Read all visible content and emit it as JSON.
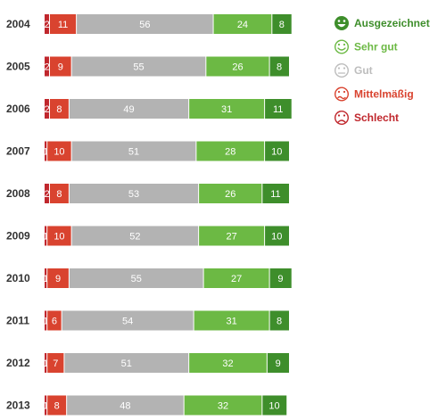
{
  "chart_data": {
    "type": "bar",
    "orientation": "horizontal",
    "stacked": true,
    "categories": [
      "2004",
      "2005",
      "2006",
      "2007",
      "2008",
      "2009",
      "2010",
      "2011",
      "2012",
      "2013"
    ],
    "series": [
      {
        "name": "Schlecht",
        "color": "#c0272d",
        "values": [
          2,
          2,
          2,
          1,
          2,
          1,
          1,
          1,
          1,
          1
        ]
      },
      {
        "name": "Mittelmäßig",
        "color": "#d9432f",
        "values": [
          11,
          9,
          8,
          10,
          8,
          10,
          9,
          6,
          7,
          8
        ]
      },
      {
        "name": "Gut",
        "color": "#b3b3b3",
        "values": [
          56,
          55,
          49,
          51,
          53,
          52,
          55,
          54,
          51,
          48
        ]
      },
      {
        "name": "Sehr gut",
        "color": "#6cb944",
        "values": [
          24,
          26,
          31,
          28,
          26,
          27,
          27,
          31,
          32,
          32
        ]
      },
      {
        "name": "Ausgezeichnet",
        "color": "#3e8e2b",
        "values": [
          8,
          8,
          11,
          10,
          11,
          10,
          9,
          8,
          9,
          10
        ]
      }
    ],
    "xlim": [
      0,
      100
    ],
    "grid": false,
    "legend_position": "right",
    "legend": [
      {
        "name": "Ausgezeichnet",
        "color": "#3e8e2b",
        "icon": "very-happy-face-icon"
      },
      {
        "name": "Sehr gut",
        "color": "#6cb944",
        "icon": "happy-face-icon"
      },
      {
        "name": "Gut",
        "color": "#bdbdbd",
        "icon": "neutral-face-icon"
      },
      {
        "name": "Mittelmäßig",
        "color": "#d9432f",
        "icon": "unsure-face-icon"
      },
      {
        "name": "Schlecht",
        "color": "#c0272d",
        "icon": "sad-face-icon"
      }
    ]
  }
}
